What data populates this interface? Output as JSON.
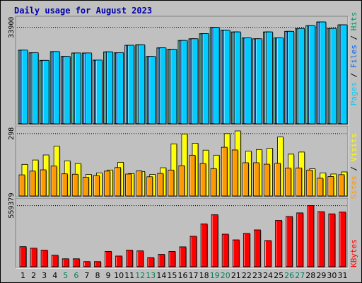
{
  "title": "Daily usage for August 2023",
  "chart_data": [
    {
      "type": "bar",
      "panel": "pages-files-hits",
      "y_tick_label": "33900",
      "ylim": [
        0,
        37300
      ],
      "categories": [
        "1",
        "2",
        "3",
        "4",
        "5",
        "6",
        "7",
        "8",
        "9",
        "10",
        "11",
        "12",
        "13",
        "14",
        "15",
        "16",
        "17",
        "18",
        "19",
        "20",
        "21",
        "22",
        "23",
        "24",
        "25",
        "26",
        "27",
        "28",
        "29",
        "30",
        "31"
      ],
      "series": [
        {
          "name": "Hits",
          "color": "#009966",
          "values": [
            25900,
            25000,
            22300,
            25400,
            23700,
            24900,
            24900,
            22400,
            25300,
            25000,
            27600,
            27800,
            23700,
            26700,
            26200,
            29300,
            29900,
            31700,
            33900,
            32900,
            32300,
            30200,
            29900,
            32300,
            30200,
            32500,
            33500,
            34500,
            35800,
            33500,
            34800
          ]
        },
        {
          "name": "Files",
          "color": "#0066ff",
          "values": [
            25900,
            25000,
            22300,
            25400,
            23700,
            24900,
            24900,
            22400,
            25300,
            25000,
            27600,
            27800,
            23700,
            26700,
            26200,
            29300,
            29900,
            31700,
            33900,
            32900,
            32300,
            30200,
            29900,
            32300,
            30200,
            32500,
            33500,
            34500,
            35800,
            33500,
            34800
          ]
        },
        {
          "name": "Pages",
          "color": "#00ccff",
          "values": [
            25900,
            25000,
            22300,
            25400,
            23700,
            24900,
            24900,
            22400,
            25300,
            25000,
            27600,
            27800,
            23700,
            26700,
            26200,
            29300,
            29900,
            31700,
            33900,
            32900,
            32300,
            30200,
            29900,
            32300,
            30200,
            32500,
            33500,
            34500,
            35800,
            33500,
            34800
          ]
        }
      ]
    },
    {
      "type": "bar",
      "panel": "visits-sites",
      "y_tick_label": "298",
      "ylim": [
        0,
        328
      ],
      "categories": [
        "1",
        "2",
        "3",
        "4",
        "5",
        "6",
        "7",
        "8",
        "9",
        "10",
        "11",
        "12",
        "13",
        "14",
        "15",
        "16",
        "17",
        "18",
        "19",
        "20",
        "21",
        "22",
        "23",
        "24",
        "25",
        "26",
        "27",
        "28",
        "29",
        "30",
        "31"
      ],
      "series": [
        {
          "name": "Visits",
          "color": "#ffff00",
          "values": [
            151,
            172,
            196,
            238,
            168,
            155,
            103,
            110,
            124,
            161,
            107,
            117,
            103,
            135,
            249,
            296,
            252,
            219,
            195,
            298,
            311,
            214,
            222,
            228,
            282,
            200,
            210,
            130,
            110,
            105,
            115
          ]
        },
        {
          "name": "Sites",
          "color": "#ff9900",
          "values": [
            101,
            119,
            125,
            143,
            106,
            104,
            90,
            98,
            119,
            136,
            105,
            120,
            92,
            108,
            124,
            145,
            195,
            155,
            131,
            233,
            220,
            159,
            159,
            152,
            156,
            133,
            134,
            124,
            85,
            93,
            102
          ]
        }
      ]
    },
    {
      "type": "bar",
      "panel": "kbytes",
      "y_tick_label": "559379",
      "ylim": [
        0,
        615000
      ],
      "categories": [
        "1",
        "2",
        "3",
        "4",
        "5",
        "6",
        "7",
        "8",
        "9",
        "10",
        "11",
        "12",
        "13",
        "14",
        "15",
        "16",
        "17",
        "18",
        "19",
        "20",
        "21",
        "22",
        "23",
        "24",
        "25",
        "26",
        "27",
        "28",
        "29",
        "30",
        "31"
      ],
      "series": [
        {
          "name": "KBytes",
          "color": "#ff0000",
          "values": [
            184000,
            170000,
            152000,
            106000,
            73000,
            73000,
            47000,
            47000,
            140000,
            98000,
            152000,
            146000,
            84000,
            113000,
            140000,
            182000,
            279000,
            392000,
            476000,
            298000,
            246000,
            305000,
            337000,
            240000,
            424000,
            460000,
            493000,
            559379,
            504000,
            484000,
            500000
          ]
        }
      ]
    }
  ],
  "weekend_days": [
    "5",
    "6",
    "12",
    "13",
    "19",
    "20",
    "26",
    "27"
  ],
  "colors": {
    "background": "#c0c0c0",
    "title": "#0000aa",
    "weekday_label": "#000000",
    "weekend_label": "#00805c"
  }
}
